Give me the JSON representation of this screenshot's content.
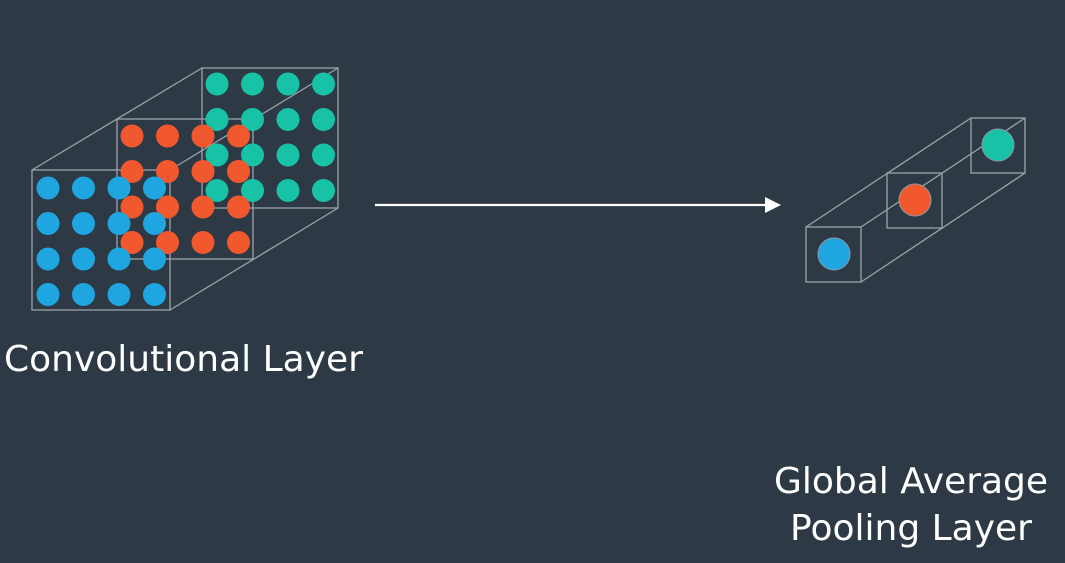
{
  "colors": {
    "background": "#2d3a45",
    "box_stroke": "#9aa3ab",
    "arrow": "#ffffff",
    "text": "#ffffff"
  },
  "diagram": {
    "feature_maps": [
      {
        "name": "blue",
        "color": "#1fa6e0"
      },
      {
        "name": "orange",
        "color": "#f2582d"
      },
      {
        "name": "teal",
        "color": "#17c2a6"
      }
    ],
    "conv_label": "Convolutional Layer",
    "gap_label_line1": "Global Average",
    "gap_label_line2": "Pooling Layer"
  }
}
